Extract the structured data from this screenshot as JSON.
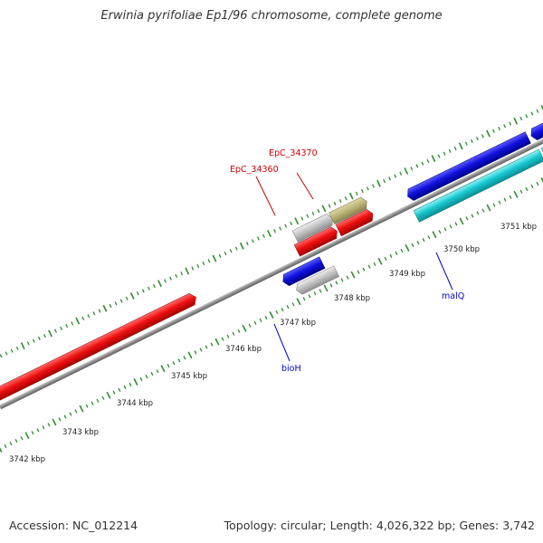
{
  "title": "Erwinia pyrifoliae Ep1/96 chromosome, complete genome",
  "footer": {
    "accession": "Accession: NC_012214",
    "summary": "Topology: circular; Length: 4,026,322 bp; Genes: 3,742"
  },
  "colors": {
    "backbone": "#8c8c8c",
    "tick": "#2e8b2e",
    "label_red": "#cc0000",
    "label_blue": "#0000cc",
    "red": "#ee1111",
    "blue": "#1111dd",
    "cyan": "#18c8d0",
    "gray": "#c4c4c4",
    "khaki": "#bdb57a"
  },
  "scale": {
    "labels": [
      "3742 kbp",
      "3743 kbp",
      "3744 kbp",
      "3745 kbp",
      "3746 kbp",
      "3747 kbp",
      "3748 kbp",
      "3749 kbp",
      "3750 kbp",
      "3751 kbp"
    ]
  },
  "genes": [
    {
      "id": "g1",
      "color": "red"
    },
    {
      "id": "g2",
      "color": "gray"
    },
    {
      "id": "g3",
      "color": "khaki"
    },
    {
      "id": "g4",
      "color": "red"
    },
    {
      "id": "g5",
      "color": "red"
    },
    {
      "id": "g6",
      "color": "blue"
    },
    {
      "id": "g7",
      "color": "blue"
    },
    {
      "id": "g8",
      "color": "gray"
    },
    {
      "id": "g9",
      "color": "cyan"
    },
    {
      "id": "g10",
      "color": "blue"
    },
    {
      "id": "g11",
      "color": "cyan"
    }
  ],
  "gene_labels": [
    {
      "text": "EpC_34370",
      "color": "label_red"
    },
    {
      "text": "EpC_34360",
      "color": "label_red"
    },
    {
      "text": "bioH",
      "color": "label_blue"
    },
    {
      "text": "malQ",
      "color": "label_blue"
    }
  ]
}
